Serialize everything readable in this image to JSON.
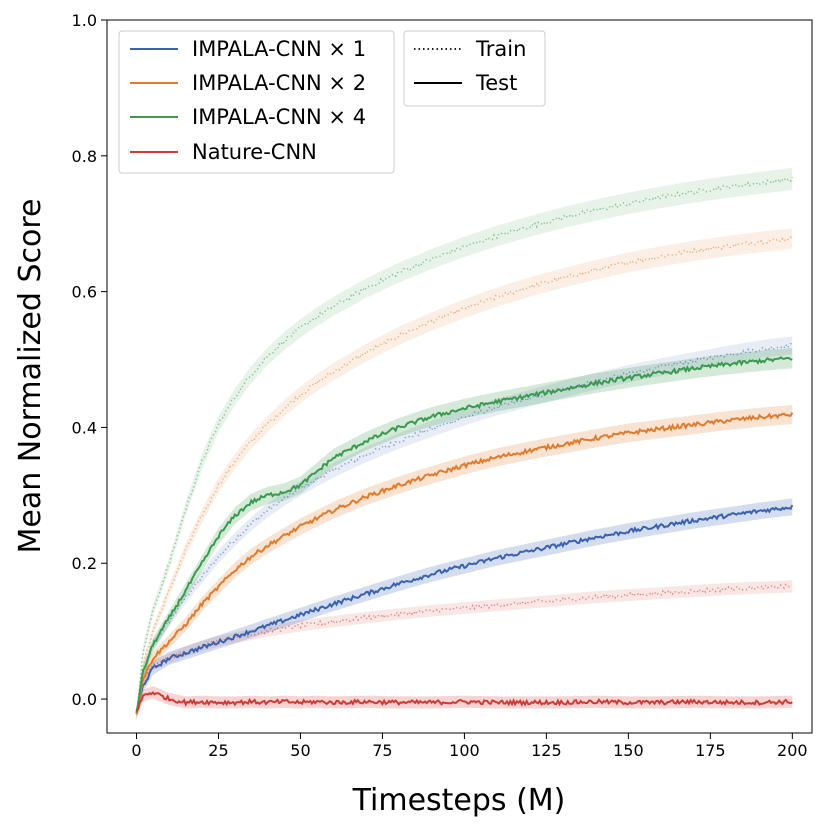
{
  "chart_data": {
    "type": "line",
    "title": "",
    "xlabel": "Timesteps (M)",
    "ylabel": "Mean Normalized Score",
    "xlim": [
      -9,
      206
    ],
    "ylim": [
      -0.05,
      1.0
    ],
    "xticks": [
      0,
      25,
      50,
      75,
      100,
      125,
      150,
      175,
      200
    ],
    "xtick_labels": [
      "0",
      "25",
      "50",
      "75",
      "100",
      "125",
      "150",
      "175",
      "200"
    ],
    "yticks": [
      0.0,
      0.2,
      0.4,
      0.6,
      0.8,
      1.0
    ],
    "ytick_labels": [
      "0.0",
      "0.2",
      "0.4",
      "0.6",
      "0.8",
      "1.0"
    ],
    "grid": false,
    "x": [
      0,
      2,
      5,
      10,
      15,
      20,
      25,
      30,
      35,
      40,
      45,
      50,
      55,
      60,
      70,
      80,
      90,
      100,
      110,
      120,
      130,
      140,
      150,
      160,
      170,
      180,
      190,
      200
    ],
    "series": [
      {
        "name": "IMPALA-CNN × 1",
        "color": "#3a62b0",
        "test": [
          -0.02,
          0.02,
          0.045,
          0.06,
          0.068,
          0.076,
          0.084,
          0.092,
          0.1,
          0.108,
          0.116,
          0.124,
          0.132,
          0.14,
          0.155,
          0.17,
          0.184,
          0.196,
          0.208,
          0.218,
          0.228,
          0.238,
          0.247,
          0.255,
          0.263,
          0.27,
          0.277,
          0.283
        ],
        "train": [
          -0.02,
          0.04,
          0.08,
          0.115,
          0.15,
          0.18,
          0.21,
          0.235,
          0.258,
          0.278,
          0.295,
          0.31,
          0.324,
          0.337,
          0.36,
          0.38,
          0.398,
          0.415,
          0.43,
          0.443,
          0.456,
          0.468,
          0.479,
          0.489,
          0.498,
          0.507,
          0.515,
          0.521
        ]
      },
      {
        "name": "IMPALA-CNN × 2",
        "color": "#e07b2c",
        "test": [
          -0.02,
          0.03,
          0.06,
          0.085,
          0.11,
          0.14,
          0.165,
          0.19,
          0.21,
          0.226,
          0.24,
          0.254,
          0.266,
          0.278,
          0.298,
          0.315,
          0.33,
          0.344,
          0.356,
          0.366,
          0.375,
          0.384,
          0.392,
          0.398,
          0.404,
          0.41,
          0.415,
          0.419
        ],
        "train": [
          -0.02,
          0.05,
          0.1,
          0.16,
          0.22,
          0.27,
          0.315,
          0.35,
          0.38,
          0.405,
          0.428,
          0.448,
          0.466,
          0.482,
          0.51,
          0.535,
          0.556,
          0.575,
          0.592,
          0.607,
          0.62,
          0.632,
          0.643,
          0.652,
          0.66,
          0.667,
          0.673,
          0.678
        ]
      },
      {
        "name": "IMPALA-CNN × 4",
        "color": "#3a9a4e",
        "test": [
          -0.02,
          0.04,
          0.08,
          0.12,
          0.16,
          0.2,
          0.24,
          0.27,
          0.29,
          0.3,
          0.305,
          0.315,
          0.335,
          0.355,
          0.38,
          0.4,
          0.416,
          0.428,
          0.438,
          0.447,
          0.456,
          0.465,
          0.473,
          0.48,
          0.487,
          0.493,
          0.498,
          0.502
        ],
        "train": [
          -0.02,
          0.07,
          0.13,
          0.2,
          0.28,
          0.35,
          0.405,
          0.445,
          0.478,
          0.505,
          0.527,
          0.546,
          0.563,
          0.578,
          0.605,
          0.628,
          0.648,
          0.666,
          0.682,
          0.696,
          0.709,
          0.72,
          0.73,
          0.739,
          0.747,
          0.754,
          0.76,
          0.766
        ]
      },
      {
        "name": "Nature-CNN",
        "color": "#d03a35",
        "test": [
          -0.02,
          0.005,
          0.01,
          0.0,
          -0.005,
          -0.004,
          -0.005,
          -0.005,
          -0.004,
          -0.005,
          -0.004,
          -0.005,
          -0.004,
          -0.005,
          -0.004,
          -0.005,
          -0.005,
          -0.004,
          -0.005,
          -0.005,
          -0.005,
          -0.004,
          -0.005,
          -0.005,
          -0.004,
          -0.005,
          -0.005,
          -0.004
        ],
        "train": [
          -0.02,
          0.03,
          0.05,
          0.06,
          0.07,
          0.078,
          0.085,
          0.09,
          0.095,
          0.1,
          0.104,
          0.108,
          0.111,
          0.114,
          0.12,
          0.125,
          0.13,
          0.134,
          0.138,
          0.142,
          0.146,
          0.15,
          0.153,
          0.156,
          0.159,
          0.162,
          0.164,
          0.166
        ]
      }
    ],
    "legend": {
      "placement": "top-left",
      "models": [
        "IMPALA-CNN × 1",
        "IMPALA-CNN × 2",
        "IMPALA-CNN × 4",
        "Nature-CNN"
      ],
      "styles": [
        {
          "label": "Train",
          "dash": "dotted"
        },
        {
          "label": "Test",
          "dash": "solid"
        }
      ]
    }
  }
}
